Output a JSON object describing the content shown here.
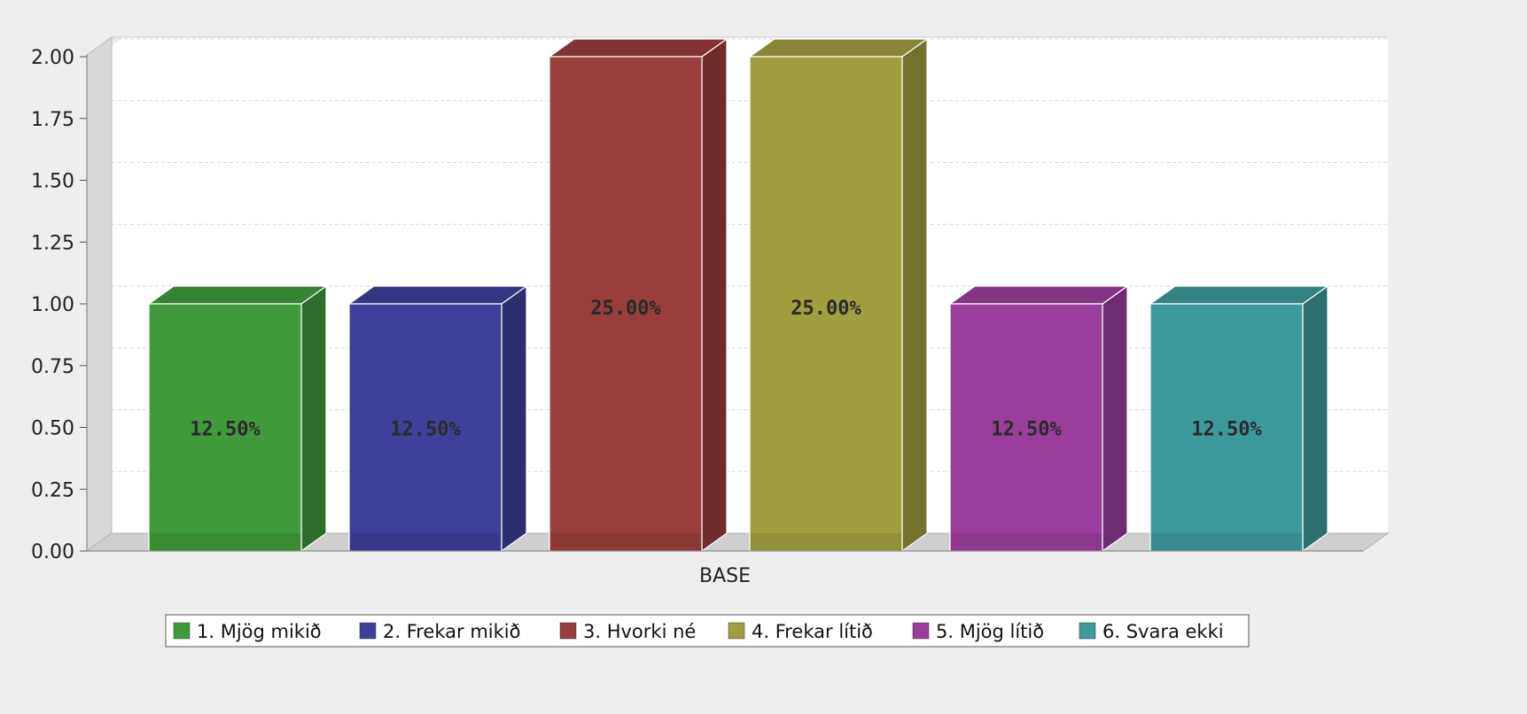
{
  "chart_data": {
    "type": "bar",
    "title": "",
    "xlabel": "",
    "ylabel": "",
    "categories": [
      "BASE"
    ],
    "ylim": [
      0,
      2.0
    ],
    "yticks": [
      "0.00",
      "0.25",
      "0.50",
      "0.75",
      "1.00",
      "1.25",
      "1.50",
      "1.75",
      "2.00"
    ],
    "grid": true,
    "legend_position": "bottom",
    "style": "3d",
    "series": [
      {
        "name": "1. Mjög mikið",
        "values": [
          1
        ],
        "label": "12.50%",
        "color": "#3f9a3a"
      },
      {
        "name": "2. Frekar mikið",
        "values": [
          1
        ],
        "label": "12.50%",
        "color": "#3d3f9a"
      },
      {
        "name": "3. Hvorki né",
        "values": [
          2
        ],
        "label": "25.00%",
        "color": "#993d3d"
      },
      {
        "name": "4. Frekar lítið",
        "values": [
          2
        ],
        "label": "25.00%",
        "color": "#a09e3f"
      },
      {
        "name": "5. Mjög lítið",
        "values": [
          1
        ],
        "label": "12.50%",
        "color": "#9a3d9c"
      },
      {
        "name": "6. Svara ekki",
        "values": [
          1
        ],
        "label": "12.50%",
        "color": "#3d9a9a"
      }
    ]
  }
}
